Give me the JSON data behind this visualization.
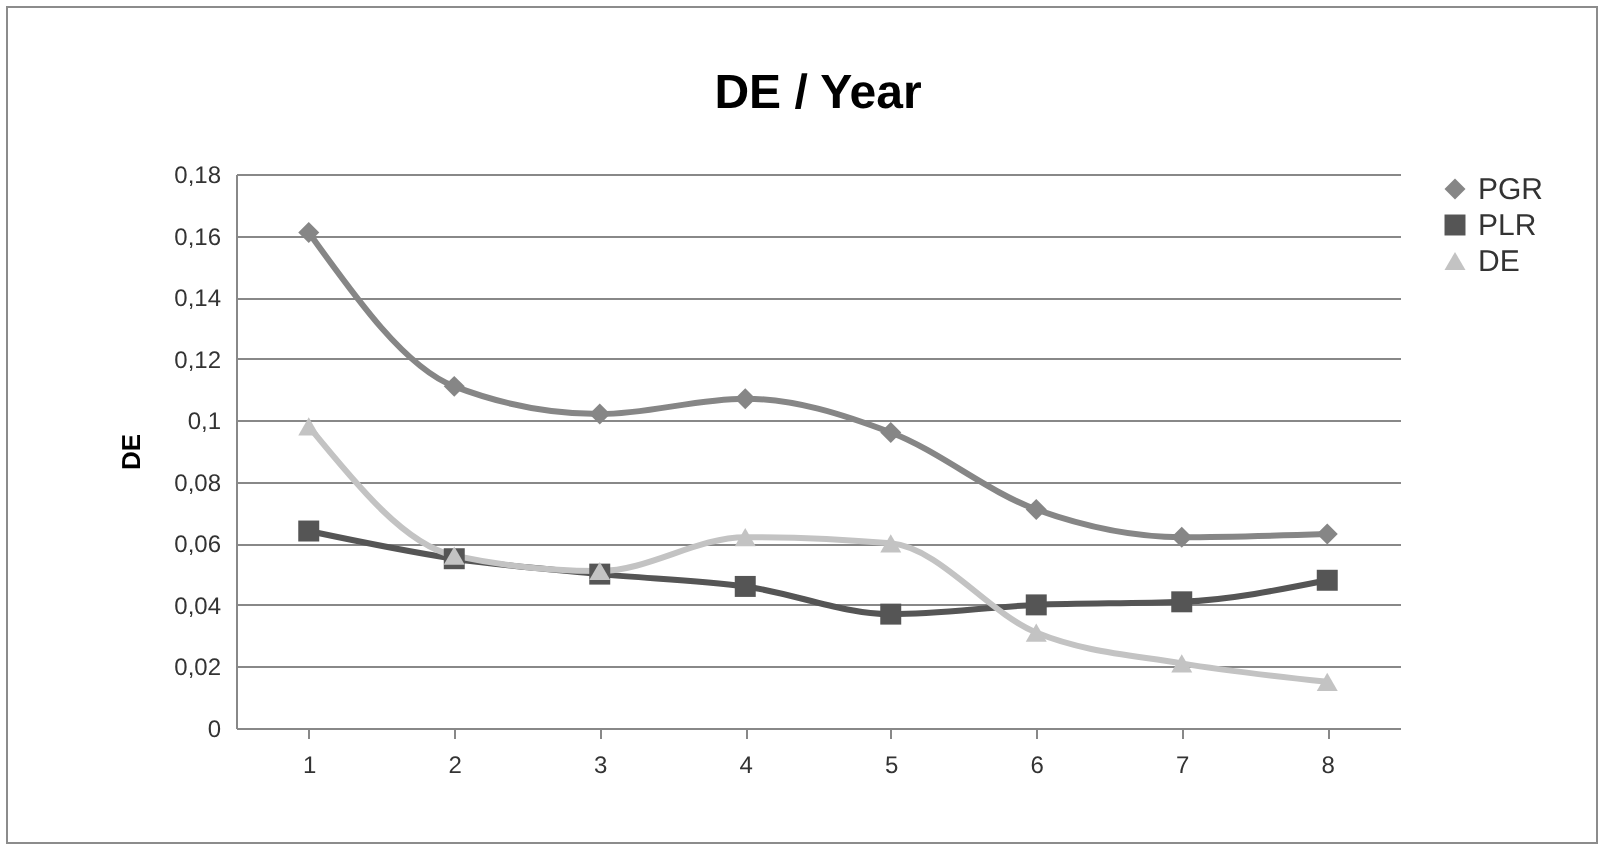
{
  "chart_data": {
    "type": "line",
    "title": "DE / Year",
    "ylabel": "DE",
    "categories": [
      "1",
      "2",
      "3",
      "4",
      "5",
      "6",
      "7",
      "8"
    ],
    "series": [
      {
        "name": "PGR",
        "color": "#868686",
        "marker": "diamond",
        "values": [
          0.161,
          0.111,
          0.102,
          0.107,
          0.096,
          0.071,
          0.062,
          0.063
        ]
      },
      {
        "name": "PLR",
        "color": "#555555",
        "marker": "square",
        "values": [
          0.064,
          0.055,
          0.05,
          0.046,
          0.037,
          0.04,
          0.041,
          0.048
        ]
      },
      {
        "name": "DE",
        "color": "#c3c3c3",
        "marker": "triangle",
        "values": [
          0.098,
          0.056,
          0.051,
          0.062,
          0.06,
          0.031,
          0.021,
          0.015
        ]
      }
    ],
    "ylim": [
      0,
      0.18
    ],
    "yticks": [
      0,
      {
        "value": 0.02,
        "label": "0,02"
      },
      {
        "value": 0.04,
        "label": "0,04"
      },
      {
        "value": 0.06,
        "label": "0,06"
      },
      {
        "value": 0.08,
        "label": "0,08"
      },
      {
        "value": 0.1,
        "label": "0,1"
      },
      {
        "value": 0.12,
        "label": "0,12"
      },
      {
        "value": 0.14,
        "label": "0,14"
      },
      {
        "value": 0.16,
        "label": "0,16"
      },
      {
        "value": 0.18,
        "label": "0,18"
      }
    ],
    "grid": "y",
    "legend": "right",
    "line_style": "solid"
  }
}
